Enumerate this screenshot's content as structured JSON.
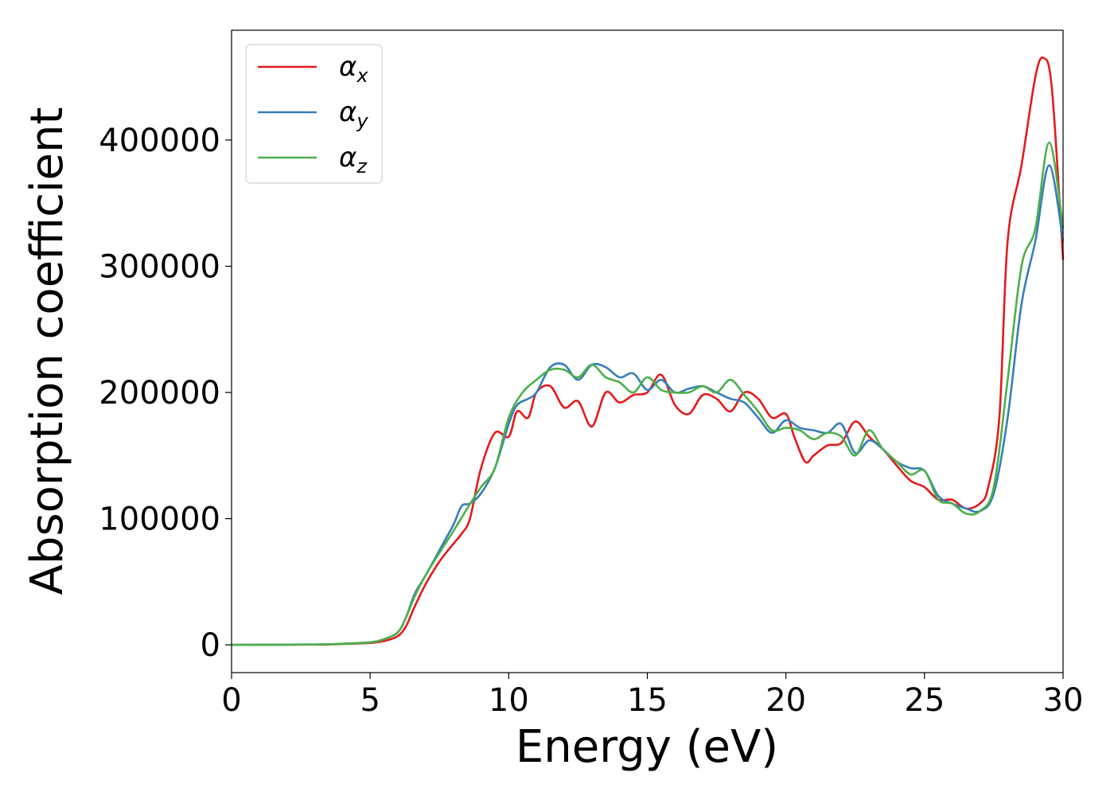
{
  "chart_data": {
    "type": "line",
    "xlabel": "Energy (eV)",
    "ylabel": "Absorption coefficient",
    "xlim": [
      0,
      30
    ],
    "ylim": [
      -22000,
      487000
    ],
    "xticks": [
      0,
      5,
      10,
      15,
      20,
      25,
      30
    ],
    "xtick_labels": [
      "0",
      "5",
      "10",
      "15",
      "20",
      "25",
      "30"
    ],
    "yticks": [
      0,
      100000,
      200000,
      300000,
      400000
    ],
    "ytick_labels": [
      "0",
      "100000",
      "200000",
      "300000",
      "400000"
    ],
    "grid": false,
    "legend": {
      "position": "top-left"
    },
    "series": [
      {
        "name": "α",
        "subscript": "x",
        "color": "#e41a1c",
        "x": [
          0,
          3,
          4,
          5,
          5.5,
          6,
          6.3,
          6.6,
          7,
          7.5,
          8,
          8.3,
          8.6,
          9,
          9.5,
          10,
          10.3,
          10.7,
          11,
          11.5,
          12,
          12.5,
          13,
          13.5,
          14,
          14.5,
          15,
          15.5,
          16,
          16.5,
          17,
          17.5,
          18,
          18.5,
          19,
          19.5,
          20,
          20.3,
          20.7,
          21,
          21.5,
          22,
          22.5,
          23,
          23.5,
          24,
          24.5,
          25,
          25.5,
          26,
          26.5,
          27,
          27.3,
          27.7,
          28,
          28.5,
          29,
          29.3,
          29.6,
          30
        ],
        "y": [
          0,
          200,
          700,
          1500,
          3000,
          7000,
          15000,
          30000,
          48000,
          66000,
          80000,
          88000,
          100000,
          140000,
          168000,
          165000,
          185000,
          180000,
          200000,
          205000,
          188000,
          193000,
          173000,
          200000,
          192000,
          198000,
          200000,
          214000,
          190000,
          183000,
          198000,
          195000,
          185000,
          200000,
          195000,
          180000,
          183000,
          165000,
          145000,
          150000,
          158000,
          160000,
          177000,
          165000,
          155000,
          142000,
          130000,
          125000,
          115000,
          115000,
          108000,
          112000,
          125000,
          180000,
          320000,
          380000,
          450000,
          465000,
          440000,
          305000
        ]
      },
      {
        "name": "α",
        "subscript": "y",
        "color": "#377eb8",
        "x": [
          0,
          3,
          4,
          5,
          5.5,
          6,
          6.3,
          6.6,
          7,
          7.5,
          8,
          8.3,
          8.6,
          9,
          9.5,
          10,
          10.3,
          10.7,
          11,
          11.5,
          12,
          12.5,
          13,
          13.5,
          14,
          14.5,
          15,
          15.5,
          16,
          16.5,
          17,
          17.5,
          18,
          18.5,
          19,
          19.5,
          20,
          20.5,
          21,
          21.5,
          22,
          22.5,
          23,
          23.5,
          24,
          24.5,
          25,
          25.5,
          26,
          26.5,
          27,
          27.5,
          28,
          28.5,
          29,
          29.5,
          30
        ],
        "y": [
          0,
          300,
          900,
          2000,
          4500,
          10000,
          22000,
          40000,
          55000,
          75000,
          95000,
          110000,
          112000,
          120000,
          140000,
          175000,
          190000,
          195000,
          200000,
          220000,
          222000,
          210000,
          222000,
          220000,
          212000,
          215000,
          202000,
          210000,
          200000,
          203000,
          205000,
          200000,
          195000,
          192000,
          180000,
          168000,
          178000,
          172000,
          170000,
          168000,
          175000,
          152000,
          162000,
          155000,
          145000,
          140000,
          138000,
          118000,
          112000,
          108000,
          106000,
          120000,
          180000,
          270000,
          320000,
          380000,
          320000
        ]
      },
      {
        "name": "α",
        "subscript": "z",
        "color": "#4daf4a",
        "x": [
          0,
          3,
          4,
          5,
          5.5,
          6,
          6.3,
          6.6,
          7,
          7.5,
          8,
          8.5,
          9,
          9.5,
          10,
          10.5,
          11,
          11.5,
          12,
          12.5,
          13,
          13.5,
          14,
          14.5,
          15,
          15.5,
          16,
          16.5,
          17,
          17.5,
          18,
          18.5,
          19,
          19.5,
          20,
          20.5,
          21,
          21.5,
          22,
          22.5,
          23,
          23.5,
          24,
          24.5,
          25,
          25.5,
          26,
          26.5,
          27,
          27.5,
          28,
          28.5,
          29,
          29.5,
          30
        ],
        "y": [
          0,
          300,
          900,
          2000,
          4500,
          10000,
          22000,
          38000,
          55000,
          73000,
          90000,
          108000,
          125000,
          140000,
          180000,
          200000,
          210000,
          218000,
          218000,
          212000,
          222000,
          212000,
          208000,
          200000,
          212000,
          202000,
          200000,
          200000,
          205000,
          200000,
          210000,
          198000,
          185000,
          170000,
          172000,
          170000,
          163000,
          168000,
          165000,
          150000,
          170000,
          155000,
          145000,
          135000,
          138000,
          115000,
          112000,
          104000,
          106000,
          125000,
          210000,
          300000,
          330000,
          398000,
          330000
        ]
      }
    ]
  }
}
